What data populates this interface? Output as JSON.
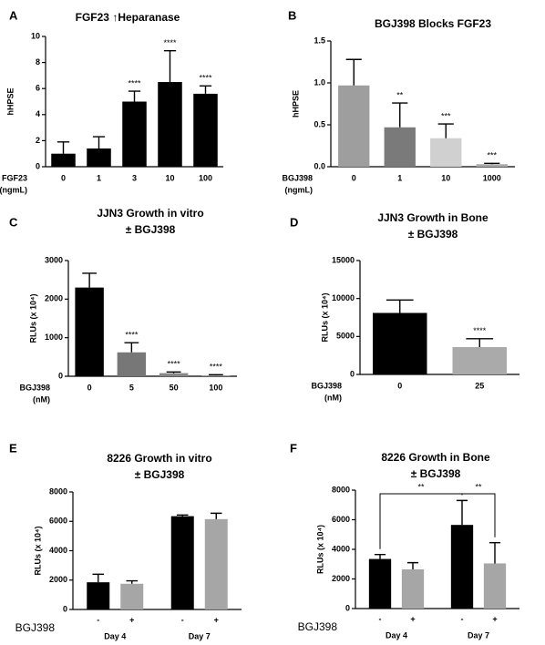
{
  "chart_data": [
    {
      "type": "bar",
      "panel": "A",
      "title": [
        "FGF23 ↑Heparanase"
      ],
      "ylabel": "hHPSE",
      "xlabel": [
        "FGF23",
        "(ngmL)"
      ],
      "categories": [
        "0",
        "1",
        "3",
        "10",
        "100"
      ],
      "values": [
        1.0,
        1.4,
        5.0,
        6.5,
        5.6
      ],
      "errors": [
        0.9,
        0.9,
        0.8,
        2.4,
        0.6
      ],
      "colors": [
        "#000000",
        "#000000",
        "#000000",
        "#000000",
        "#000000"
      ],
      "value_annotations": [
        null,
        null,
        "****",
        "****",
        "****"
      ],
      "ylim": [
        0,
        10
      ],
      "yticks": [
        0,
        2,
        4,
        6,
        8,
        10
      ]
    },
    {
      "type": "bar",
      "panel": "B",
      "title": [
        "BGJ398 Blocks FGF23"
      ],
      "ylabel": "hHPSE",
      "xlabel": [
        "BGJ398",
        "(ngmL)"
      ],
      "categories": [
        "0",
        "1",
        "10",
        "1000"
      ],
      "values": [
        0.97,
        0.47,
        0.34,
        0.03
      ],
      "errors": [
        0.31,
        0.29,
        0.17,
        0.01
      ],
      "colors": [
        "#9e9e9e",
        "#7a7a7a",
        "#d0d0d0",
        "#aaaaaa"
      ],
      "value_annotations": [
        null,
        "**",
        "***",
        "***"
      ],
      "ylim": [
        0,
        1.5
      ],
      "yticks": [
        {
          "value": 0,
          "label": "0.0"
        },
        {
          "value": 0.5,
          "label": "0.5"
        },
        {
          "value": 1,
          "label": "1.0"
        },
        {
          "value": 1.5,
          "label": "1.5"
        }
      ]
    },
    {
      "type": "bar",
      "panel": "C",
      "title": [
        "JJN3 Growth in vitro",
        "± BGJ398"
      ],
      "ylabel": "RLUs (x 10⁴)",
      "xlabel": [
        "BGJ398",
        "(nM)"
      ],
      "categories": [
        "0",
        "5",
        "50",
        "100"
      ],
      "values": [
        2300,
        620,
        80,
        20
      ],
      "errors": [
        370,
        250,
        30,
        20
      ],
      "colors": [
        "#000000",
        "#777777",
        "#888888",
        "#999999"
      ],
      "value_annotations": [
        null,
        "****",
        "****",
        "****"
      ],
      "ylim": [
        0,
        3000
      ],
      "yticks": [
        0,
        1000,
        2000,
        3000
      ]
    },
    {
      "type": "bar",
      "panel": "D",
      "title": [
        "JJN3 Growth in Bone",
        "± BGJ398"
      ],
      "ylabel": "RLUs (x 10⁴)",
      "xlabel": [
        "BGJ398",
        "(nM)"
      ],
      "categories": [
        "0",
        "25"
      ],
      "values": [
        8100,
        3600
      ],
      "errors": [
        1700,
        1100
      ],
      "colors": [
        "#000000",
        "#aaaaaa"
      ],
      "value_annotations": [
        null,
        "****"
      ],
      "ylim": [
        0,
        15000
      ],
      "yticks": [
        0,
        5000,
        10000,
        15000
      ]
    },
    {
      "type": "grouped_bar",
      "panel": "E",
      "title": [
        "8226 Growth in vitro",
        "± BGJ398"
      ],
      "ylabel": "RLUs (x 10⁴)",
      "xlabel": [
        "BGJ398"
      ],
      "categories": [
        "Day 4",
        "Day 7"
      ],
      "series": [
        {
          "name": "-",
          "color": "#000000",
          "values": [
            1850,
            6350
          ],
          "errors": [
            550,
            80
          ]
        },
        {
          "name": "+",
          "color": "#a6a6a6",
          "values": [
            1750,
            6150
          ],
          "errors": [
            200,
            400
          ]
        }
      ],
      "ylim": [
        0,
        8000
      ],
      "yticks": [
        0,
        2000,
        4000,
        6000,
        8000
      ]
    },
    {
      "type": "grouped_bar",
      "panel": "F",
      "title": [
        "8226 Growth in Bone",
        "± BGJ398"
      ],
      "ylabel": "RLUs (x 10⁴)",
      "xlabel": [
        "BGJ398"
      ],
      "categories": [
        "Day 4",
        "Day 7"
      ],
      "series": [
        {
          "name": "-",
          "color": "#000000",
          "values": [
            3350,
            5650
          ],
          "errors": [
            300,
            1650
          ]
        },
        {
          "name": "+",
          "color": "#a6a6a6",
          "values": [
            2650,
            3050
          ],
          "errors": [
            450,
            1400
          ]
        }
      ],
      "brackets": [
        "**",
        "**"
      ],
      "ylim": [
        0,
        8000
      ],
      "yticks": [
        0,
        2000,
        4000,
        6000,
        8000
      ]
    }
  ]
}
